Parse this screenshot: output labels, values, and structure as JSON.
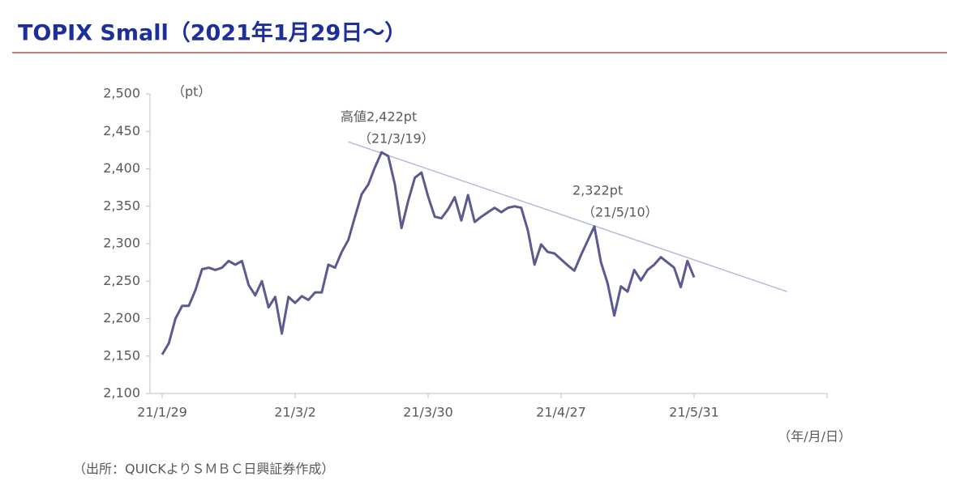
{
  "chart_data": {
    "type": "line",
    "title": "TOPIX Small（2021年1月29日～）",
    "y_label": "（pt）",
    "x_label": "（年/月/日）",
    "source": "（出所：QUICKよりＳＭＢＣ日興証券作成）",
    "categories": [
      "21/1/29",
      null,
      null,
      null,
      null,
      null,
      null,
      null,
      null,
      null,
      null,
      null,
      null,
      null,
      null,
      null,
      null,
      null,
      null,
      null,
      "21/3/2",
      null,
      null,
      null,
      null,
      null,
      null,
      null,
      null,
      null,
      null,
      null,
      null,
      null,
      null,
      null,
      null,
      null,
      null,
      null,
      "21/3/30",
      null,
      null,
      null,
      null,
      null,
      null,
      null,
      null,
      null,
      null,
      null,
      null,
      null,
      null,
      null,
      null,
      null,
      null,
      null,
      "21/4/27",
      null,
      null,
      null,
      null,
      null,
      null,
      null,
      null,
      null,
      null,
      null,
      null,
      null,
      null,
      null,
      null,
      null,
      null,
      null,
      "21/5/31",
      null,
      null,
      null,
      null,
      null,
      null,
      null,
      null,
      null,
      null,
      null,
      null,
      null,
      null,
      null,
      null,
      null,
      null,
      null,
      null
    ],
    "series": [
      {
        "name": "TOPIX Small",
        "color": "#5a5b8f",
        "values": [
          2152,
          2167,
          2200,
          2217,
          2217,
          2238,
          2266,
          2268,
          2265,
          2268,
          2277,
          2272,
          2277,
          2245,
          2231,
          2250,
          2215,
          2229,
          2180,
          2229,
          2221,
          2230,
          2225,
          2235,
          2235,
          2272,
          2268,
          2289,
          2305,
          2336,
          2366,
          2379,
          2402,
          2422,
          2417,
          2379,
          2321,
          2357,
          2388,
          2395,
          2363,
          2336,
          2334,
          2346,
          2362,
          2331,
          2365,
          2329,
          2336,
          2342,
          2348,
          2342,
          2348,
          2350,
          2348,
          2318,
          2272,
          2299,
          2289,
          2287,
          2279,
          2271,
          2264,
          2285,
          2304,
          2323,
          2275,
          2247,
          2204,
          2243,
          2236,
          2265,
          2251,
          2265,
          2272,
          2282,
          2275,
          2268,
          2242,
          2277,
          2255,
          null,
          null,
          null,
          null,
          null,
          null,
          null,
          null,
          null,
          null,
          null,
          null,
          null,
          null,
          null,
          null,
          null,
          null,
          null,
          null
        ]
      }
    ],
    "trendline": {
      "color": "#b9b9dd",
      "start": {
        "index": 28,
        "value": 2436
      },
      "end": {
        "index": 94,
        "value": 2236
      }
    },
    "annotations": [
      "高値2,422pt",
      "（21/3/19）",
      "2,322pt",
      "（21/5/10）"
    ],
    "ylim": [
      2100,
      2500
    ],
    "yticks": [
      {
        "value": 2100,
        "label": "2,100"
      },
      {
        "value": 2150,
        "label": "2,150"
      },
      {
        "value": 2200,
        "label": "2,200"
      },
      {
        "value": 2250,
        "label": "2,250"
      },
      {
        "value": 2300,
        "label": "2,300"
      },
      {
        "value": 2350,
        "label": "2,350"
      },
      {
        "value": 2400,
        "label": "2,400"
      },
      {
        "value": 2450,
        "label": "2,450"
      },
      {
        "value": 2500,
        "label": "2,500"
      }
    ],
    "x_tick_every": 20,
    "grid": false
  }
}
